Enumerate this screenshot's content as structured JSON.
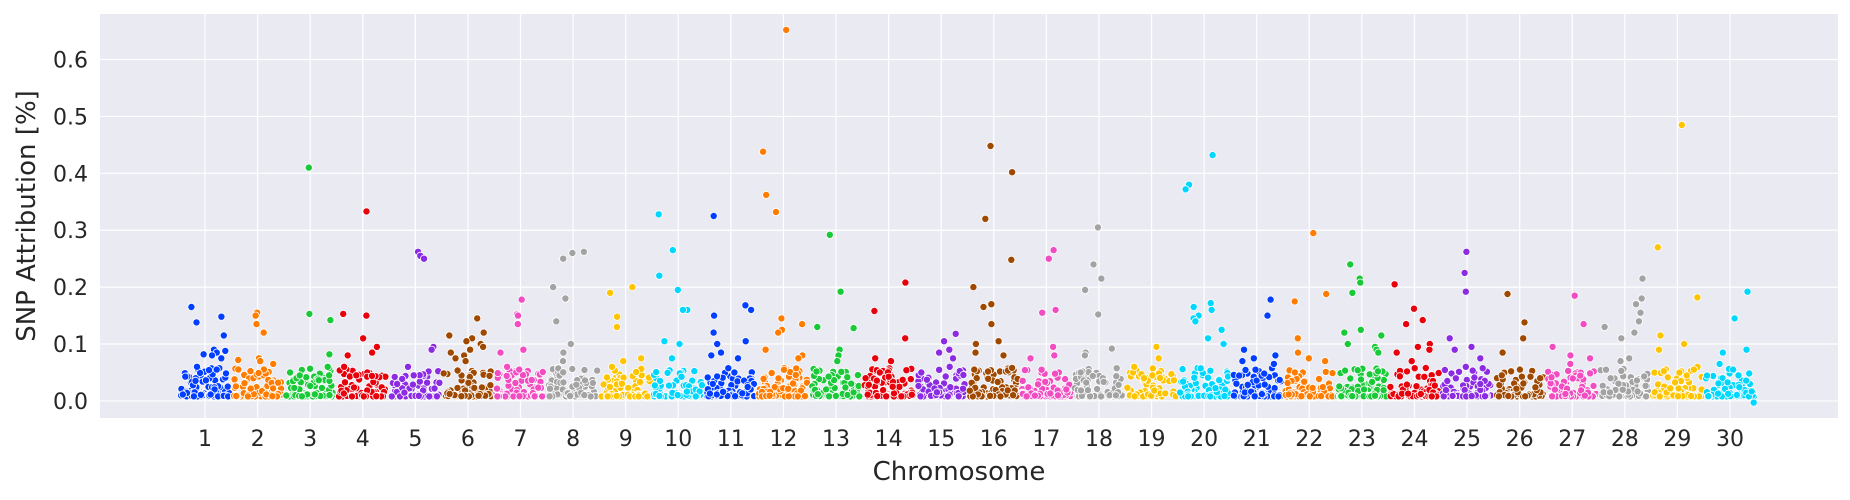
{
  "chart_data": {
    "type": "scatter",
    "title": "",
    "xlabel": "Chromosome",
    "ylabel": "SNP Attribution [%]",
    "x_tick_labels": [
      "1",
      "2",
      "3",
      "4",
      "5",
      "6",
      "7",
      "8",
      "9",
      "10",
      "11",
      "12",
      "13",
      "14",
      "15",
      "16",
      "17",
      "18",
      "19",
      "20",
      "21",
      "22",
      "23",
      "24",
      "25",
      "26",
      "27",
      "28",
      "29",
      "30"
    ],
    "y_tick_labels": [
      "0.0",
      "0.1",
      "0.2",
      "0.3",
      "0.4",
      "0.5",
      "0.6"
    ],
    "y_ticks": [
      0,
      0.1,
      0.2,
      0.3,
      0.4,
      0.5,
      0.6
    ],
    "ylim": [
      -0.03,
      0.68
    ],
    "grid": true,
    "legend": "none",
    "background": "#EAEAF2",
    "point_edge_color": "#ffffff",
    "palette": [
      "#023EFF",
      "#FF7C00",
      "#1AC938",
      "#E8000B",
      "#8B2BE2",
      "#9F4800",
      "#F14CC1",
      "#A3A3A3",
      "#FFC400",
      "#00D7FF"
    ],
    "series": [
      {
        "chromosome": "1",
        "baseline_points": 110,
        "peaks": [
          0.165,
          0.148,
          0.138,
          0.115,
          0.09,
          0.088,
          0.085,
          0.082,
          0.08,
          0.075,
          0.06,
          0.055
        ]
      },
      {
        "chromosome": "2",
        "baseline_points": 90,
        "peaks": [
          0.155,
          0.15,
          0.135,
          0.12,
          0.075,
          0.072,
          0.07,
          0.065
        ]
      },
      {
        "chromosome": "3",
        "baseline_points": 85,
        "peaks": [
          0.41,
          0.153,
          0.142,
          0.082,
          0.06,
          0.05,
          0.045
        ]
      },
      {
        "chromosome": "4",
        "baseline_points": 80,
        "peaks": [
          0.333,
          0.153,
          0.15,
          0.11,
          0.095,
          0.085,
          0.08,
          0.06,
          0.045
        ]
      },
      {
        "chromosome": "5",
        "baseline_points": 75,
        "peaks": [
          0.262,
          0.255,
          0.25,
          0.095,
          0.09,
          0.06,
          0.045
        ]
      },
      {
        "chromosome": "6",
        "baseline_points": 85,
        "peaks": [
          0.145,
          0.12,
          0.115,
          0.11,
          0.105,
          0.1,
          0.095,
          0.09,
          0.085,
          0.08,
          0.075,
          0.07
        ]
      },
      {
        "chromosome": "7",
        "baseline_points": 80,
        "peaks": [
          0.178,
          0.152,
          0.15,
          0.135,
          0.09,
          0.085,
          0.06,
          0.055
        ]
      },
      {
        "chromosome": "8",
        "baseline_points": 75,
        "peaks": [
          0.262,
          0.26,
          0.25,
          0.2,
          0.18,
          0.14,
          0.1,
          0.085,
          0.07
        ]
      },
      {
        "chromosome": "9",
        "baseline_points": 80,
        "peaks": [
          0.2,
          0.19,
          0.148,
          0.13,
          0.075,
          0.07,
          0.06
        ]
      },
      {
        "chromosome": "10",
        "baseline_points": 75,
        "peaks": [
          0.328,
          0.265,
          0.22,
          0.195,
          0.16,
          0.16,
          0.105,
          0.1,
          0.075
        ]
      },
      {
        "chromosome": "11",
        "baseline_points": 90,
        "peaks": [
          0.325,
          0.168,
          0.16,
          0.15,
          0.12,
          0.105,
          0.1,
          0.085,
          0.08,
          0.075
        ]
      },
      {
        "chromosome": "12",
        "baseline_points": 95,
        "peaks": [
          0.652,
          0.438,
          0.362,
          0.332,
          0.145,
          0.135,
          0.125,
          0.12,
          0.09,
          0.08,
          0.075
        ]
      },
      {
        "chromosome": "13",
        "baseline_points": 80,
        "peaks": [
          0.292,
          0.192,
          0.13,
          0.128,
          0.09,
          0.08,
          0.07
        ]
      },
      {
        "chromosome": "14",
        "baseline_points": 80,
        "peaks": [
          0.208,
          0.158,
          0.11,
          0.075,
          0.07,
          0.05
        ]
      },
      {
        "chromosome": "15",
        "baseline_points": 75,
        "peaks": [
          0.118,
          0.105,
          0.09,
          0.085,
          0.075,
          0.06,
          0.05
        ]
      },
      {
        "chromosome": "16",
        "baseline_points": 100,
        "peaks": [
          0.448,
          0.402,
          0.32,
          0.248,
          0.2,
          0.17,
          0.165,
          0.135,
          0.105,
          0.1,
          0.085,
          0.08
        ]
      },
      {
        "chromosome": "17",
        "baseline_points": 80,
        "peaks": [
          0.265,
          0.25,
          0.16,
          0.155,
          0.095,
          0.08,
          0.075
        ]
      },
      {
        "chromosome": "18",
        "baseline_points": 75,
        "peaks": [
          0.305,
          0.24,
          0.215,
          0.195,
          0.152,
          0.092,
          0.085,
          0.08
        ]
      },
      {
        "chromosome": "19",
        "baseline_points": 70,
        "peaks": [
          0.095,
          0.075,
          0.06,
          0.045,
          0.04
        ]
      },
      {
        "chromosome": "20",
        "baseline_points": 90,
        "peaks": [
          0.432,
          0.38,
          0.372,
          0.172,
          0.165,
          0.16,
          0.15,
          0.145,
          0.14,
          0.125,
          0.11,
          0.1
        ]
      },
      {
        "chromosome": "21",
        "baseline_points": 85,
        "peaks": [
          0.178,
          0.15,
          0.09,
          0.08,
          0.075,
          0.07,
          0.065
        ]
      },
      {
        "chromosome": "22",
        "baseline_points": 80,
        "peaks": [
          0.295,
          0.188,
          0.175,
          0.11,
          0.085,
          0.075,
          0.07
        ]
      },
      {
        "chromosome": "23",
        "baseline_points": 90,
        "peaks": [
          0.24,
          0.215,
          0.208,
          0.19,
          0.125,
          0.12,
          0.115,
          0.1,
          0.095,
          0.09,
          0.085
        ]
      },
      {
        "chromosome": "24",
        "baseline_points": 85,
        "peaks": [
          0.205,
          0.162,
          0.142,
          0.135,
          0.1,
          0.095,
          0.09,
          0.085,
          0.07
        ]
      },
      {
        "chromosome": "25",
        "baseline_points": 80,
        "peaks": [
          0.262,
          0.225,
          0.192,
          0.11,
          0.095,
          0.09,
          0.075,
          0.06
        ]
      },
      {
        "chromosome": "26",
        "baseline_points": 75,
        "peaks": [
          0.188,
          0.138,
          0.11,
          0.085,
          0.045,
          0.04
        ]
      },
      {
        "chromosome": "27",
        "baseline_points": 80,
        "peaks": [
          0.185,
          0.135,
          0.095,
          0.08,
          0.075,
          0.065
        ]
      },
      {
        "chromosome": "28",
        "baseline_points": 80,
        "peaks": [
          0.215,
          0.18,
          0.17,
          0.155,
          0.14,
          0.13,
          0.12,
          0.11,
          0.075,
          0.07
        ]
      },
      {
        "chromosome": "29",
        "baseline_points": 75,
        "peaks": [
          0.485,
          0.27,
          0.182,
          0.115,
          0.1,
          0.09,
          0.06,
          0.055
        ]
      },
      {
        "chromosome": "30",
        "baseline_points": 75,
        "peaks": [
          0.192,
          0.145,
          0.09,
          0.085,
          0.065,
          0.055,
          0.045
        ]
      }
    ],
    "extra_points": [
      {
        "chromosome": "30",
        "value": -0.003
      }
    ]
  }
}
